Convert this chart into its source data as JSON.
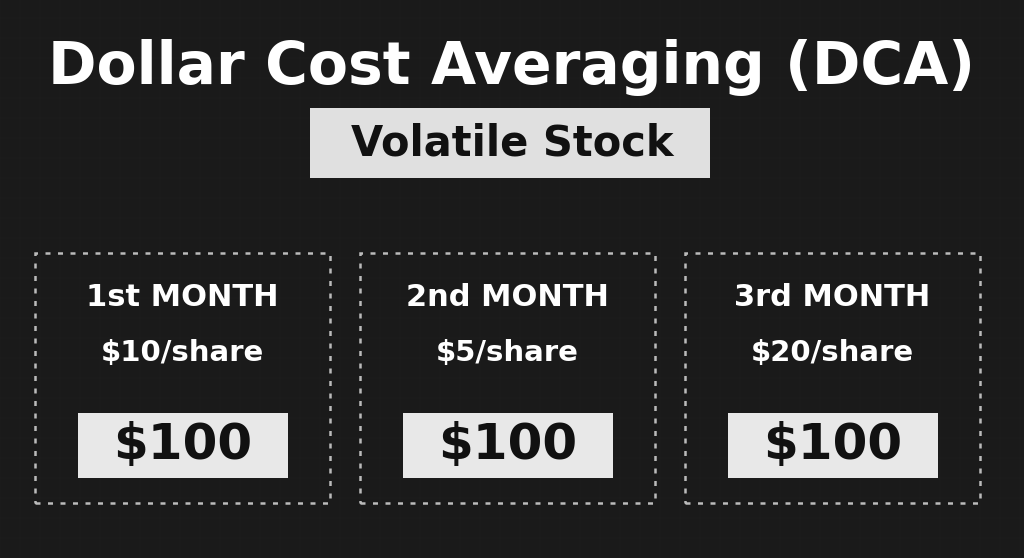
{
  "title": "Dollar Cost Averaging (DCA)",
  "subtitle": "Volatile Stock",
  "background_color": "#1a1a1a",
  "title_color": "#ffffff",
  "subtitle_color": "#111111",
  "subtitle_bg_color": "#e0e0e0",
  "card_border_color": "#bbbbbb",
  "amount_box_color": "#e8e8e8",
  "amount_box_text_color": "#111111",
  "card_text_color": "#ffffff",
  "cards": [
    {
      "month": "1st MONTH",
      "price": "$10/share",
      "amount": "$100"
    },
    {
      "month": "2nd MONTH",
      "price": "$5/share",
      "amount": "$100"
    },
    {
      "month": "3rd MONTH",
      "price": "$20/share",
      "amount": "$100"
    }
  ],
  "title_fontsize": 42,
  "subtitle_fontsize": 30,
  "month_fontsize": 22,
  "price_fontsize": 21,
  "amount_fontsize": 36
}
